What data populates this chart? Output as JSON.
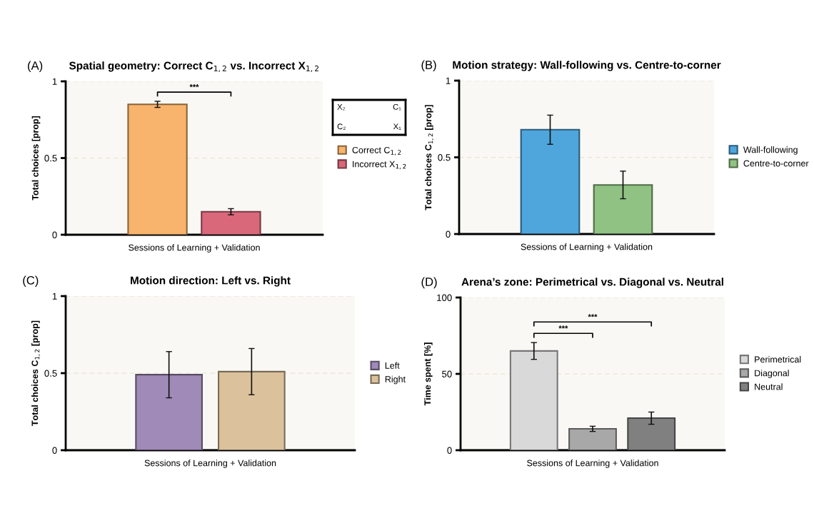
{
  "chart_data": [
    {
      "type": "bar",
      "title": "Spatial geometry: Correct C$_{1,2}$ vs. Incorrect X$_{1,2}$",
      "xlabel": "Sessions of Learning + Validation",
      "ylabel": "Total choices [prop]",
      "categories": [
        null
      ],
      "ylim": [
        0,
        1
      ],
      "yticks": [
        0,
        0.5,
        1
      ],
      "grid": "y",
      "legend": "right",
      "annotations": [
        "(A)",
        "***"
      ],
      "series": [
        {
          "name": "Correct C$_{1,2}$",
          "color": "#f8b46c",
          "values": [
            0.85
          ],
          "errors": [
            0.02
          ]
        },
        {
          "name": "Incorrect X$_{1,2}$",
          "color": "#d9687a",
          "values": [
            0.15
          ],
          "errors": [
            0.02
          ]
        }
      ]
    },
    {
      "type": "other",
      "annotations": [
        "X₂",
        "C₁",
        "C₂",
        "X₁"
      ]
    },
    {
      "type": "bar",
      "title": "Motion strategy: Wall-following vs. Centre-to-corner",
      "xlabel": "Sessions of Learning + Validation",
      "ylabel": "Total choices C$_{1,2}$ [prop]",
      "categories": [
        null
      ],
      "ylim": [
        0,
        1
      ],
      "yticks": [
        0,
        0.5,
        1
      ],
      "grid": "y",
      "legend": "right",
      "annotations": [
        "(B)"
      ],
      "series": [
        {
          "name": "Wall-following",
          "color": "#4fa6dc",
          "values": [
            0.68
          ],
          "errors": [
            0.095
          ]
        },
        {
          "name": "Centre-to-corner",
          "color": "#8fc283",
          "values": [
            0.32
          ],
          "errors": [
            0.09
          ]
        }
      ]
    },
    {
      "type": "bar",
      "title": "Motion direction: Left vs. Right",
      "xlabel": "Sessions of Learning + Validation",
      "ylabel": "Total choices C$_{1,2}$ [prop]",
      "categories": [
        null
      ],
      "ylim": [
        0,
        1
      ],
      "yticks": [
        0,
        0.5,
        1
      ],
      "grid": "y",
      "legend": "right",
      "annotations": [
        "(C)"
      ],
      "series": [
        {
          "name": "Left",
          "color": "#a08ab8",
          "values": [
            0.49
          ],
          "errors": [
            0.15
          ]
        },
        {
          "name": "Right",
          "color": "#dbc29c",
          "values": [
            0.51
          ],
          "errors": [
            0.15
          ]
        }
      ]
    },
    {
      "type": "bar",
      "title": "Arena’s zone: Perimetrical vs. Diagonal vs. Neutral",
      "xlabel": "Sessions of Learning + Validation",
      "ylabel": "Time spent [%]",
      "categories": [
        null
      ],
      "ylim": [
        0,
        100
      ],
      "yticks": [
        0,
        50,
        100
      ],
      "grid": "y",
      "legend": "right",
      "annotations": [
        "(D)",
        "***",
        "***"
      ],
      "series": [
        {
          "name": "Perimetrical",
          "color": "#d9d9d9",
          "values": [
            65
          ],
          "errors": [
            5.5
          ]
        },
        {
          "name": "Diagonal",
          "color": "#a8a8a8",
          "values": [
            14
          ],
          "errors": [
            1.7
          ]
        },
        {
          "name": "Neutral",
          "color": "#808080",
          "values": [
            21
          ],
          "errors": [
            4
          ]
        }
      ]
    }
  ]
}
